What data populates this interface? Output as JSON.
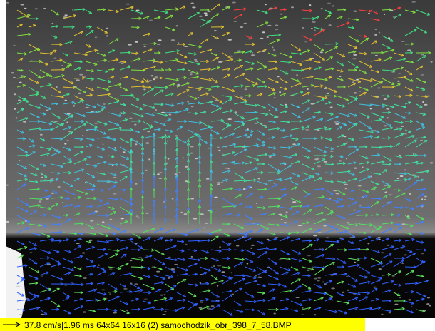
{
  "caption": {
    "text": "37.8 cm/s|1.96 ms 64x64 16x16 (2) samochodzik_obr_398_7_58.BMP"
  }
}
